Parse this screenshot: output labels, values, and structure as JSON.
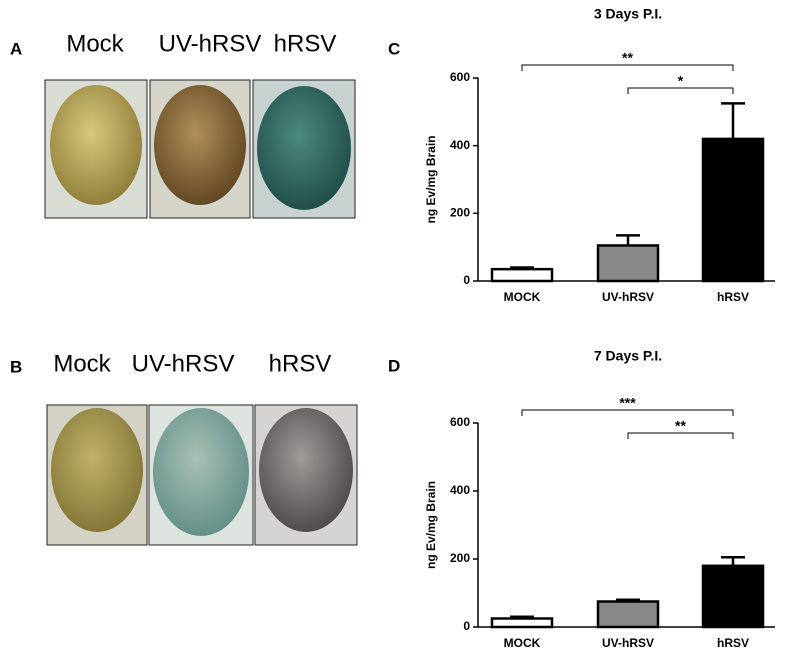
{
  "photo_panels": [
    {
      "letter": "A",
      "labels": [
        "Mock",
        "UV-hRSV",
        "hRSV"
      ]
    },
    {
      "letter": "B",
      "labels": [
        "Mock",
        "UV-hRSV",
        "hRSV"
      ]
    }
  ],
  "chart_data": [
    {
      "type": "bar",
      "panel_letter": "C",
      "title": "3 Days P.I.",
      "y_label": "ng Ev/mg Brain",
      "categories": [
        "MOCK",
        "UV-hRSV",
        "hRSV"
      ],
      "values": [
        35,
        105,
        420
      ],
      "errors": [
        5,
        30,
        105
      ],
      "colors": [
        "#ffffff",
        "#888888",
        "#000000"
      ],
      "ylim": [
        0,
        600
      ],
      "yticks": [
        0,
        200,
        400,
        600
      ],
      "comparisons": [
        {
          "from": 0,
          "to": 2,
          "label": "**"
        },
        {
          "from": 1,
          "to": 2,
          "label": "*"
        }
      ]
    },
    {
      "type": "bar",
      "panel_letter": "D",
      "title": "7 Days P.I.",
      "y_label": "ng Ev/mg Brain",
      "categories": [
        "MOCK",
        "UV-hRSV",
        "hRSV"
      ],
      "values": [
        25,
        75,
        180
      ],
      "errors": [
        5,
        5,
        25
      ],
      "colors": [
        "#ffffff",
        "#888888",
        "#000000"
      ],
      "ylim": [
        0,
        600
      ],
      "yticks": [
        0,
        200,
        400,
        600
      ],
      "comparisons": [
        {
          "from": 0,
          "to": 2,
          "label": "***"
        },
        {
          "from": 1,
          "to": 2,
          "label": "**"
        }
      ]
    }
  ]
}
